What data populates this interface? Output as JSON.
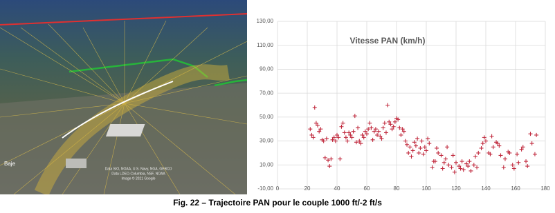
{
  "image": {
    "place_label": "Baje",
    "attribution": [
      "Data SIO, NOAA, U.S. Navy, NGA, GEBCO",
      "Data LDEO-Columbia, NSF, NOAA",
      "Image © 2021 Google"
    ]
  },
  "chart_data": {
    "type": "scatter",
    "title": "Vitesse PAN (km/h)",
    "color": "#c0283c",
    "marker": "+",
    "grid": true,
    "xlim": [
      0,
      180
    ],
    "xticks": [
      0,
      20,
      40,
      60,
      80,
      100,
      120,
      140,
      160,
      180
    ],
    "ylim": [
      -10,
      130
    ],
    "yticks": [
      {
        "value": -10,
        "label": "-10,00"
      },
      {
        "value": 10,
        "label": "10,00"
      },
      {
        "value": 30,
        "label": "30,00"
      },
      {
        "value": 50,
        "label": "50,00"
      },
      {
        "value": 70,
        "label": "70,00"
      },
      {
        "value": 90,
        "label": "90,00"
      },
      {
        "value": 110,
        "label": "110,00"
      },
      {
        "value": 130,
        "label": "130,00"
      }
    ],
    "x": [
      22,
      23,
      24,
      25,
      26,
      27,
      28,
      29,
      30,
      31,
      32,
      33,
      34,
      35,
      36,
      37,
      38,
      39,
      40,
      41,
      42,
      43,
      44,
      45,
      46,
      47,
      48,
      49,
      50,
      51,
      52,
      53,
      54,
      55,
      56,
      57,
      58,
      59,
      60,
      61,
      62,
      63,
      64,
      65,
      66,
      67,
      68,
      69,
      70,
      71,
      72,
      73,
      74,
      75,
      76,
      77,
      78,
      79,
      80,
      81,
      82,
      83,
      84,
      85,
      86,
      87,
      88,
      89,
      90,
      91,
      92,
      93,
      94,
      95,
      96,
      97,
      98,
      99,
      100,
      101,
      102,
      104,
      105,
      106,
      107,
      108,
      110,
      111,
      112,
      113,
      114,
      115,
      117,
      118,
      119,
      120,
      122,
      123,
      124,
      125,
      127,
      128,
      129,
      130,
      132,
      133,
      134,
      135,
      137,
      138,
      139,
      140,
      142,
      143,
      144,
      145,
      147,
      148,
      149,
      150,
      152,
      153,
      155,
      156,
      158,
      159,
      161,
      162,
      164,
      165,
      167,
      168,
      170,
      171,
      173,
      174
    ],
    "values": [
      40,
      35,
      33,
      58,
      45,
      43,
      38,
      40,
      31,
      30,
      16,
      32,
      14,
      9,
      15,
      31,
      33,
      30,
      35,
      33,
      15,
      42,
      45,
      37,
      33,
      30,
      37,
      35,
      33,
      38,
      51,
      29,
      41,
      30,
      28,
      35,
      33,
      38,
      36,
      40,
      45,
      41,
      31,
      38,
      40,
      35,
      38,
      34,
      32,
      41,
      45,
      37,
      60,
      46,
      44,
      40,
      42,
      46,
      49,
      48,
      41,
      35,
      40,
      38,
      30,
      27,
      20,
      25,
      17,
      22,
      29,
      26,
      32,
      20,
      24,
      30,
      19,
      25,
      22,
      32,
      28,
      8,
      13,
      13,
      24,
      20,
      18,
      7,
      12,
      15,
      25,
      10,
      8,
      18,
      4,
      12,
      9,
      7,
      13,
      6,
      11,
      9,
      13,
      5,
      10,
      17,
      8,
      20,
      24,
      28,
      33,
      30,
      20,
      19,
      34,
      25,
      29,
      28,
      26,
      18,
      8,
      15,
      21,
      20,
      10,
      7,
      19,
      12,
      23,
      25,
      13,
      9,
      36,
      28,
      19,
      35
    ]
  },
  "caption": "Fig. 22 – Trajectoire PAN pour le couple 1000 ft/-2 ft/s"
}
